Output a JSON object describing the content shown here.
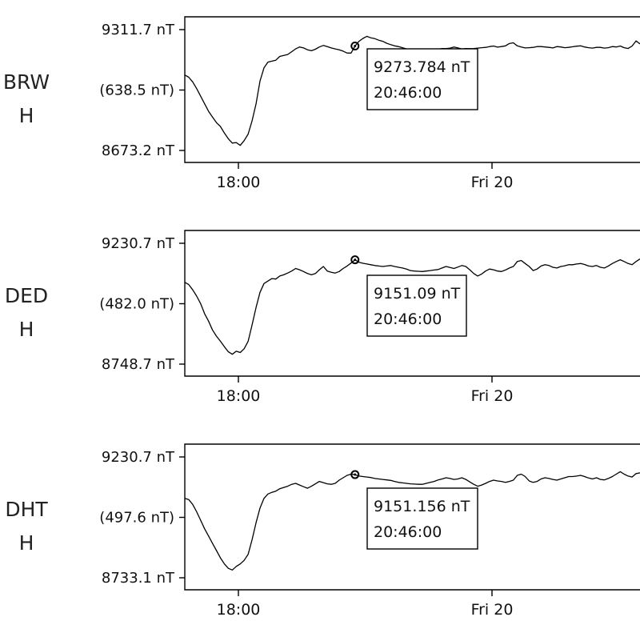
{
  "chart_data": [
    {
      "type": "line",
      "station": "BRW",
      "component": "H",
      "y_ticks": [
        "9311.7 nT",
        "(638.5 nT)",
        "8673.2 nT"
      ],
      "ylim": [
        8673.2,
        9311.7
      ],
      "x_ticks": [
        "18:00",
        "Fri 20"
      ],
      "tooltip": {
        "value": "9273.784 nT",
        "time": "20:46:00"
      },
      "series": [
        {
          "color": "#000000",
          "y": [
            9072,
            9060,
            9035,
            9000,
            8960,
            8920,
            8880,
            8850,
            8820,
            8800,
            8765,
            8735,
            8712,
            8715,
            8700,
            8725,
            8760,
            8830,
            8920,
            9040,
            9110,
            9140,
            9145,
            9150,
            9170,
            9175,
            9180,
            9195,
            9210,
            9220,
            9215,
            9205,
            9200,
            9208,
            9220,
            9228,
            9222,
            9215,
            9210,
            9205,
            9198,
            9188,
            9188,
            9225,
            9250,
            9265,
            9276,
            9268,
            9264,
            9256,
            9250,
            9240,
            9232,
            9226,
            9222,
            9216,
            9210,
            9206,
            9203,
            9210,
            9208,
            9203,
            9204,
            9205,
            9208,
            9212,
            9212,
            9214,
            9220,
            9215,
            9210,
            9212,
            9211,
            9212,
            9214,
            9216,
            9218,
            9222,
            9225,
            9219,
            9222,
            9226,
            9238,
            9242,
            9226,
            9220,
            9215,
            9216,
            9218,
            9222,
            9222,
            9220,
            9218,
            9215,
            9222,
            9220,
            9216,
            9218,
            9221,
            9224,
            9226,
            9220,
            9216,
            9214,
            9218,
            9218,
            9214,
            9216,
            9222,
            9220,
            9225,
            9216,
            9212,
            9225,
            9252,
            9236
          ]
        }
      ]
    },
    {
      "type": "line",
      "station": "DED",
      "component": "H",
      "y_ticks": [
        "9230.7 nT",
        "(482.0 nT)",
        "8748.7 nT"
      ],
      "ylim": [
        8748.7,
        9230.7
      ],
      "x_ticks": [
        "18:00",
        "Fri 20"
      ],
      "tooltip": {
        "value": "9151.09 nT",
        "time": "20:46:00"
      },
      "series": [
        {
          "color": "#000000",
          "y": [
            9075,
            9066,
            9045,
            9020,
            8990,
            8950,
            8920,
            8885,
            8860,
            8840,
            8818,
            8798,
            8788,
            8800,
            8795,
            8810,
            8840,
            8905,
            8975,
            9035,
            9070,
            9080,
            9090,
            9088,
            9100,
            9105,
            9112,
            9120,
            9130,
            9125,
            9118,
            9110,
            9105,
            9110,
            9125,
            9138,
            9120,
            9115,
            9112,
            9118,
            9130,
            9140,
            9152,
            9165,
            9155,
            9151,
            9148,
            9145,
            9142,
            9140,
            9138,
            9140,
            9142,
            9138,
            9135,
            9132,
            9128,
            9122,
            9120,
            9119,
            9118,
            9120,
            9122,
            9124,
            9126,
            9132,
            9138,
            9134,
            9130,
            9136,
            9142,
            9138,
            9125,
            9110,
            9100,
            9108,
            9120,
            9128,
            9125,
            9120,
            9118,
            9124,
            9132,
            9138,
            9158,
            9162,
            9150,
            9138,
            9122,
            9128,
            9140,
            9145,
            9142,
            9135,
            9132,
            9138,
            9141,
            9145,
            9145,
            9148,
            9150,
            9146,
            9140,
            9138,
            9142,
            9135,
            9132,
            9140,
            9150,
            9158,
            9165,
            9158,
            9150,
            9145,
            9158,
            9168
          ]
        }
      ]
    },
    {
      "type": "line",
      "station": "DHT",
      "component": "H",
      "y_ticks": [
        "9230.7 nT",
        "(497.6 nT)",
        "8733.1 nT"
      ],
      "ylim": [
        8733.1,
        9230.7
      ],
      "x_ticks": [
        "18:00",
        "Fri 20"
      ],
      "tooltip": {
        "value": "9151.156 nT",
        "time": "20:46:00"
      },
      "series": [
        {
          "color": "#000000",
          "y": [
            9060,
            9055,
            9035,
            9005,
            8970,
            8935,
            8905,
            8875,
            8845,
            8815,
            8790,
            8772,
            8765,
            8780,
            8790,
            8805,
            8830,
            8890,
            8960,
            9020,
            9060,
            9078,
            9085,
            9090,
            9100,
            9105,
            9110,
            9118,
            9122,
            9115,
            9108,
            9102,
            9110,
            9120,
            9130,
            9125,
            9120,
            9118,
            9122,
            9135,
            9145,
            9155,
            9160,
            9158,
            9152,
            9150,
            9148,
            9146,
            9142,
            9140,
            9138,
            9136,
            9134,
            9130,
            9126,
            9124,
            9122,
            9120,
            9119,
            9118,
            9118,
            9122,
            9126,
            9130,
            9136,
            9140,
            9145,
            9142,
            9138,
            9140,
            9145,
            9138,
            9128,
            9118,
            9110,
            9115,
            9122,
            9130,
            9135,
            9132,
            9130,
            9126,
            9130,
            9135,
            9155,
            9160,
            9150,
            9132,
            9126,
            9130,
            9140,
            9145,
            9142,
            9138,
            9135,
            9140,
            9145,
            9150,
            9150,
            9152,
            9155,
            9150,
            9144,
            9140,
            9145,
            9138,
            9136,
            9142,
            9150,
            9160,
            9170,
            9160,
            9152,
            9148,
            9162,
            9165
          ]
        }
      ]
    }
  ]
}
